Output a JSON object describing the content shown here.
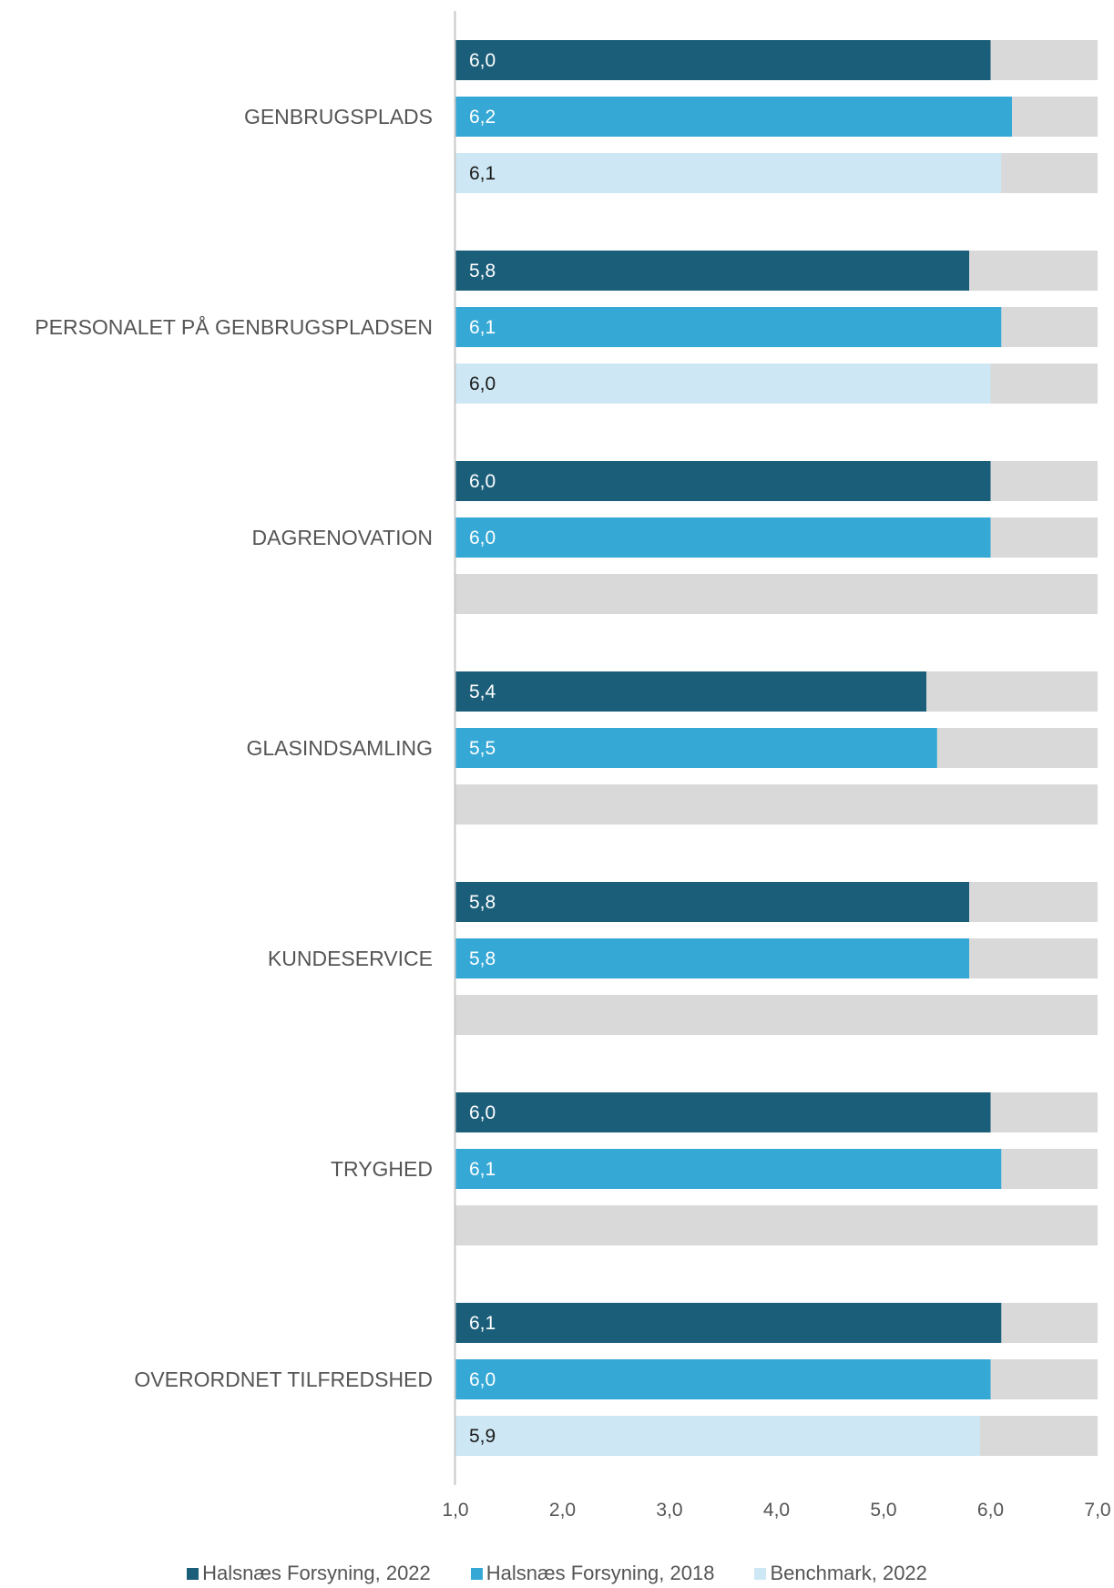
{
  "chart_data": {
    "type": "bar",
    "orientation": "horizontal",
    "categories": [
      "GENBRUGSPLADS",
      "PERSONALET PÅ GENBRUGSPLADSEN",
      "DAGRENOVATION",
      "GLASINDSAMLING",
      "KUNDESERVICE",
      "TRYGHED",
      "OVERORDNET TILFREDSHED"
    ],
    "series": [
      {
        "name": "Halsnæs Forsyning, 2022",
        "color": "#1b5e7a",
        "values": [
          6.0,
          5.8,
          6.0,
          5.4,
          5.8,
          6.0,
          6.1
        ]
      },
      {
        "name": "Halsnæs Forsyning, 2018",
        "color": "#35a8d6",
        "values": [
          6.2,
          6.1,
          6.0,
          5.5,
          5.8,
          6.1,
          6.0
        ]
      },
      {
        "name": "Benchmark, 2022",
        "color": "#cde8f4",
        "values": [
          6.1,
          6.0,
          null,
          null,
          null,
          null,
          5.9
        ]
      }
    ],
    "value_labels": [
      [
        "6,0",
        "5,8",
        "6,0",
        "5,4",
        "5,8",
        "6,0",
        "6,1"
      ],
      [
        "6,2",
        "6,1",
        "6,0",
        "5,5",
        "5,8",
        "6,1",
        "6,0"
      ],
      [
        "6,1",
        "6,0",
        "",
        "",
        "",
        "",
        "5,9"
      ]
    ],
    "background_bar_color": "#d9d9d9",
    "xlim": [
      1.0,
      7.0
    ],
    "xticks": [
      1,
      2,
      3,
      4,
      5,
      6,
      7
    ],
    "xtick_labels": [
      "1,0",
      "2,0",
      "3,0",
      "4,0",
      "5,0",
      "6,0",
      "7,0"
    ],
    "title": "",
    "xlabel": "",
    "ylabel": "",
    "grid": false,
    "legend_position": "bottom"
  }
}
